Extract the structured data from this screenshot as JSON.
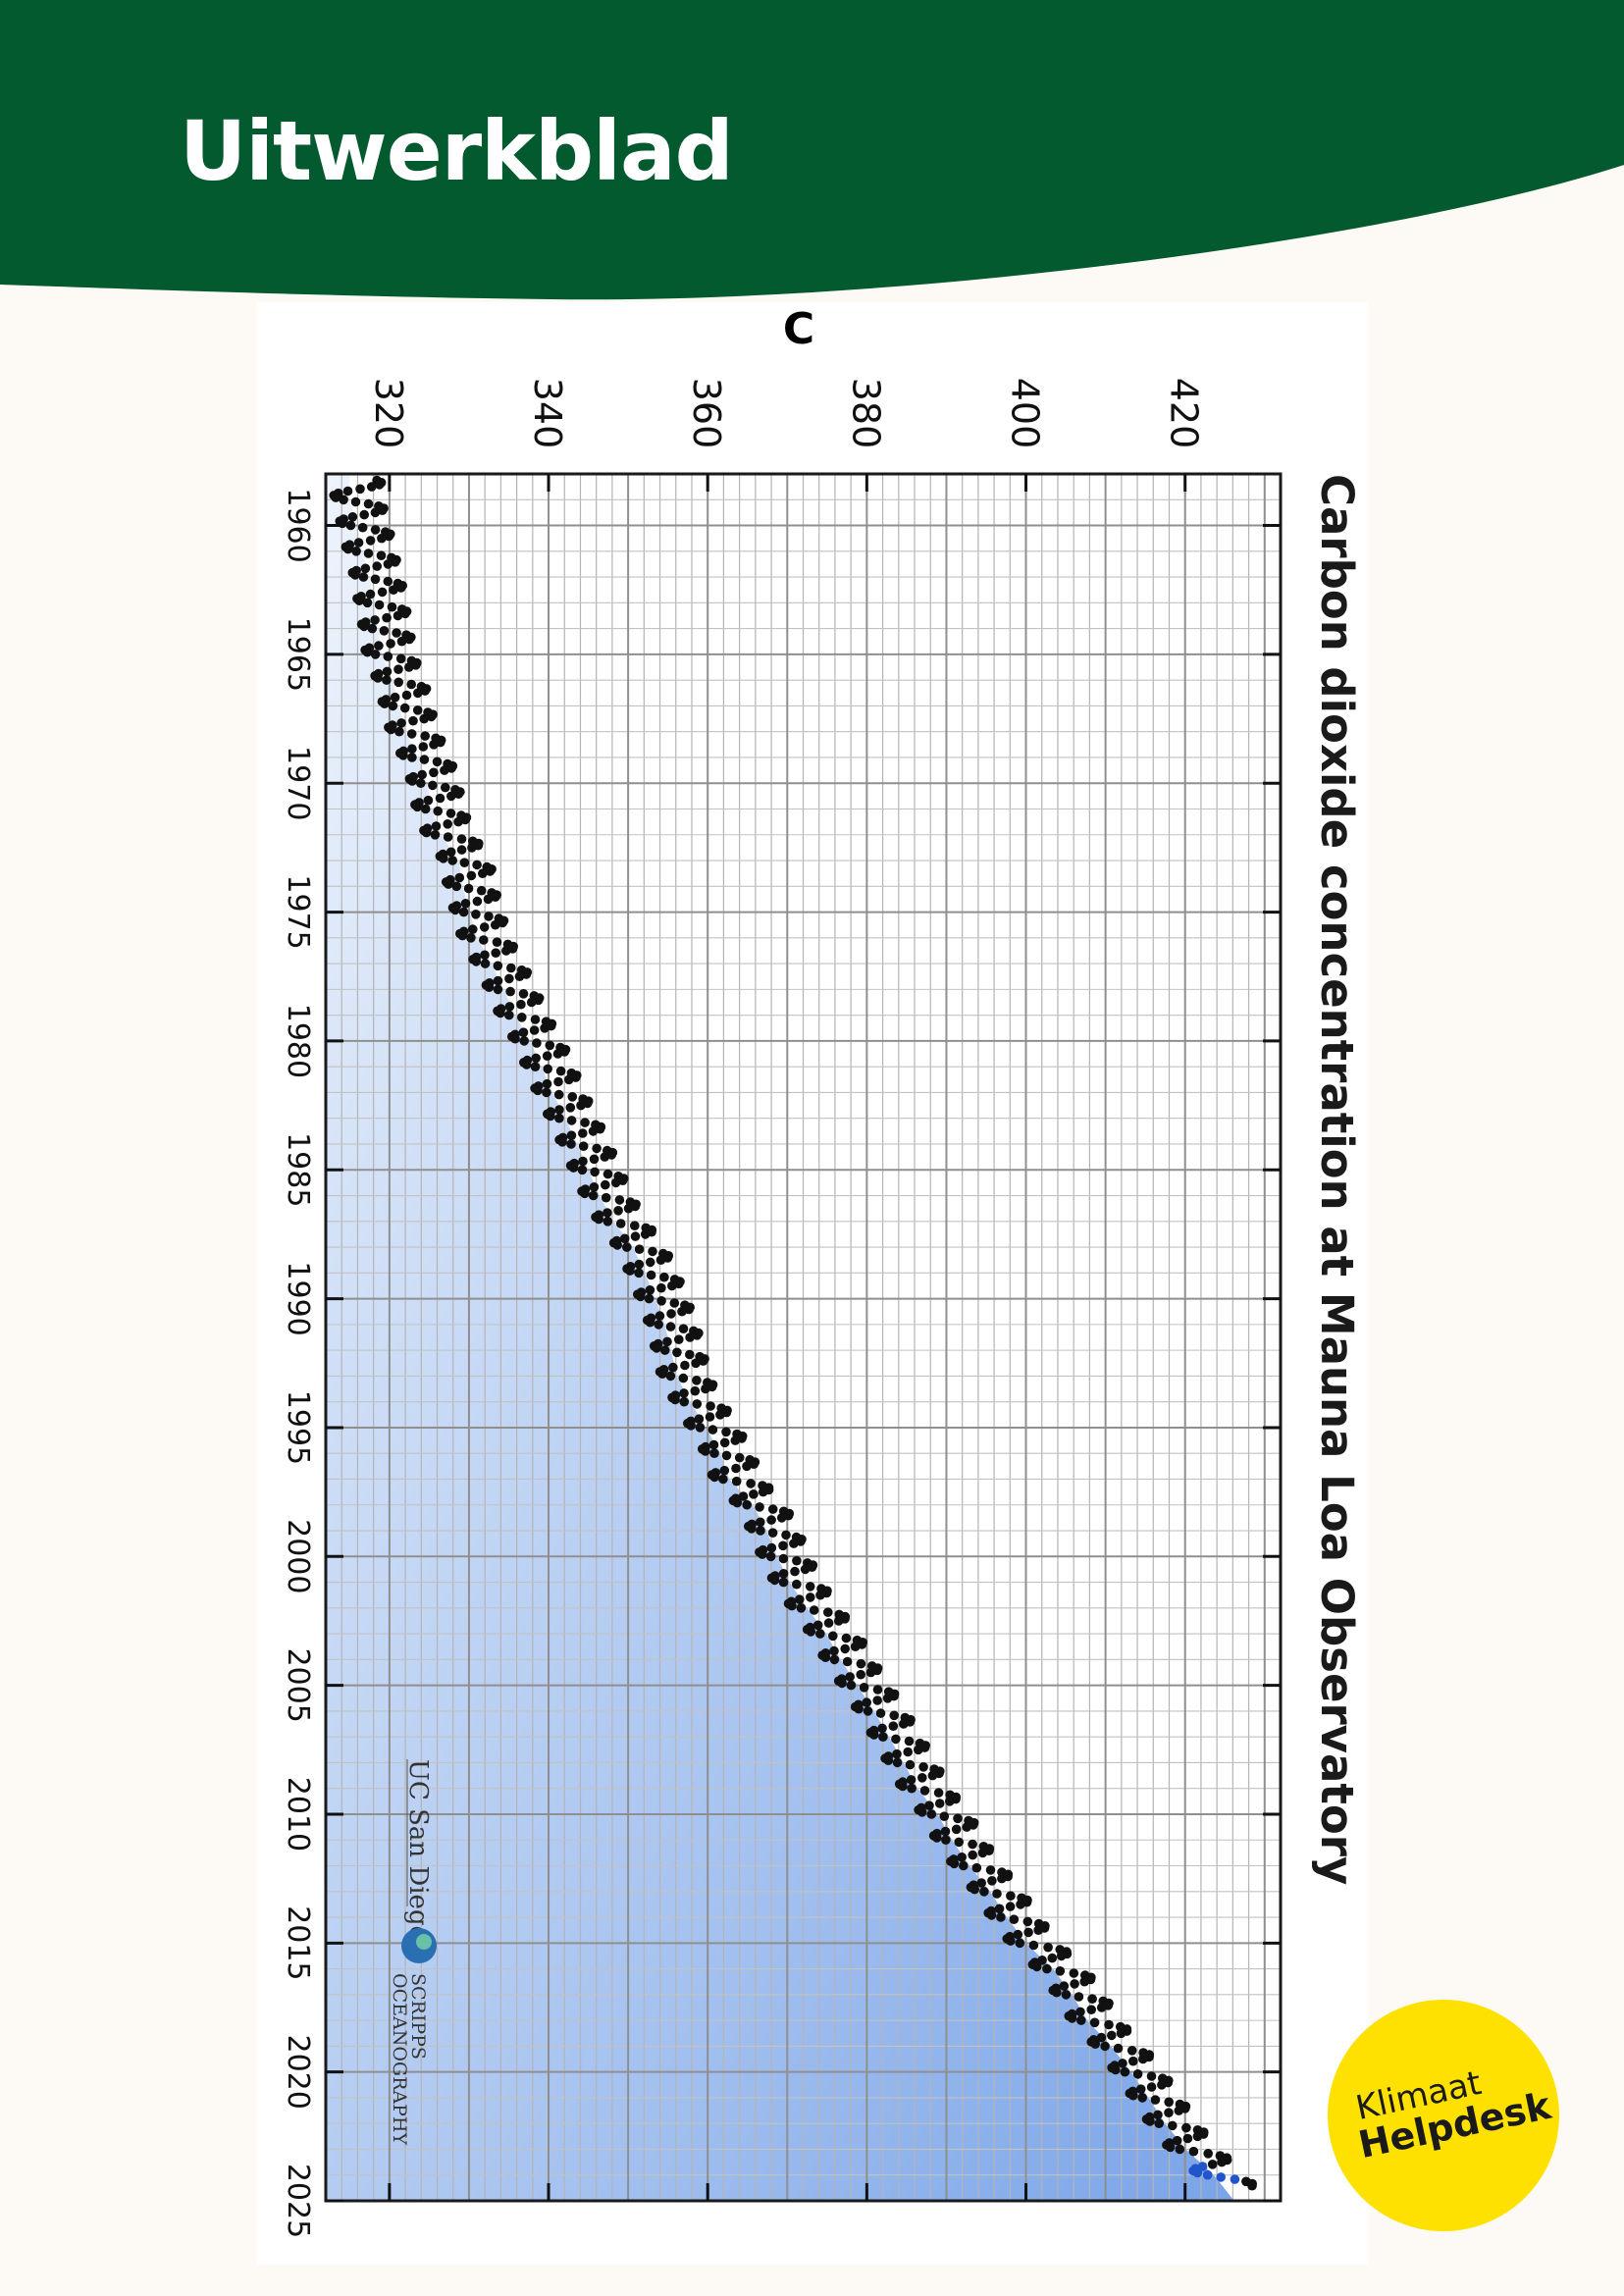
{
  "worksheet": {
    "title": "Uitwerkblad"
  },
  "badge": {
    "line1": "Klimaat",
    "line2": "Helpdesk"
  },
  "logos": {
    "ucsd": "UC San Diego",
    "scripps": [
      "SCRIPPS",
      "OCEANOGRAPHY"
    ]
  },
  "colors": {
    "header_green": "#035a2e",
    "badge_yellow": "#ffe100",
    "points": "#111111",
    "recent_points": "#2255cc",
    "fill_light": "#e8f0fb",
    "fill_dark": "#7aa4e8",
    "grid": "#a8a8a8"
  },
  "chart_data": {
    "type": "scatter",
    "orientation": "rotated 90° clockwise",
    "panel_label": "C",
    "title": "Carbon dioxide concentration at Mauna Loa Observatory",
    "xlabel": "",
    "ylabel": "",
    "xlim": [
      1958,
      2025
    ],
    "ylim": [
      312,
      432
    ],
    "x_ticks": [
      1960,
      1965,
      1970,
      1975,
      1980,
      1985,
      1990,
      1995,
      2000,
      2005,
      2010,
      2015,
      2020,
      2025
    ],
    "y_ticks": [
      320,
      340,
      360,
      380,
      400,
      420
    ],
    "grid": true,
    "fill_under_curve": true,
    "series": [
      {
        "style": "monthly points with seasonal cycle, seasonal amplitude ≈ 6 ppm",
        "annual_mean": {
          "x": [
            1959,
            1960,
            1961,
            1962,
            1963,
            1964,
            1965,
            1966,
            1967,
            1968,
            1969,
            1970,
            1971,
            1972,
            1973,
            1974,
            1975,
            1976,
            1977,
            1978,
            1979,
            1980,
            1981,
            1982,
            1983,
            1984,
            1985,
            1986,
            1987,
            1988,
            1989,
            1990,
            1991,
            1992,
            1993,
            1994,
            1995,
            1996,
            1997,
            1998,
            1999,
            2000,
            2001,
            2002,
            2003,
            2004,
            2005,
            2006,
            2007,
            2008,
            2009,
            2010,
            2011,
            2012,
            2013,
            2014,
            2015,
            2016,
            2017,
            2018,
            2019,
            2020,
            2021,
            2022,
            2023,
            2024
          ],
          "y": [
            316.0,
            316.9,
            317.6,
            318.5,
            319.0,
            319.6,
            320.0,
            321.4,
            322.2,
            323.0,
            324.6,
            325.7,
            326.3,
            327.5,
            329.7,
            330.2,
            331.1,
            332.0,
            333.8,
            335.4,
            336.8,
            338.7,
            340.1,
            341.5,
            343.1,
            344.6,
            346.0,
            347.4,
            349.2,
            351.6,
            353.1,
            354.4,
            355.6,
            356.4,
            357.1,
            358.8,
            360.8,
            362.6,
            363.7,
            366.7,
            368.4,
            369.7,
            371.3,
            373.5,
            375.9,
            377.7,
            379.8,
            381.9,
            383.8,
            385.6,
            387.4,
            389.9,
            391.7,
            393.9,
            396.5,
            398.6,
            401.0,
            404.4,
            406.8,
            408.7,
            411.7,
            414.2,
            416.4,
            418.5,
            421.1,
            424.6
          ]
        }
      }
    ]
  }
}
